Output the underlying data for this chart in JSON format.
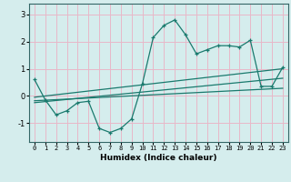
{
  "title": "",
  "xlabel": "Humidex (Indice chaleur)",
  "xlim": [
    -0.5,
    23.5
  ],
  "ylim": [
    -1.7,
    3.4
  ],
  "xticks": [
    0,
    1,
    2,
    3,
    4,
    5,
    6,
    7,
    8,
    9,
    10,
    11,
    12,
    13,
    14,
    15,
    16,
    17,
    18,
    19,
    20,
    21,
    22,
    23
  ],
  "yticks": [
    -1,
    0,
    1,
    2,
    3
  ],
  "bg_color": "#d5eded",
  "grid_color": "#e8b8c8",
  "line_color": "#1a7a6e",
  "curve_x": [
    0,
    1,
    2,
    3,
    4,
    5,
    6,
    7,
    8,
    9,
    10,
    11,
    12,
    13,
    14,
    15,
    16,
    17,
    18,
    19,
    20,
    21,
    22,
    23
  ],
  "curve_y": [
    0.6,
    -0.15,
    -0.7,
    -0.55,
    -0.25,
    -0.2,
    -1.2,
    -1.35,
    -1.2,
    -0.85,
    0.45,
    2.15,
    2.6,
    2.8,
    2.25,
    1.55,
    1.7,
    1.85,
    1.85,
    1.8,
    2.05,
    0.35,
    0.35,
    1.05
  ],
  "line1_x": [
    0,
    23
  ],
  "line1_y": [
    -0.05,
    1.0
  ],
  "line2_x": [
    0,
    23
  ],
  "line2_y": [
    -0.25,
    0.65
  ],
  "line3_x": [
    0,
    23
  ],
  "line3_y": [
    -0.18,
    0.28
  ]
}
